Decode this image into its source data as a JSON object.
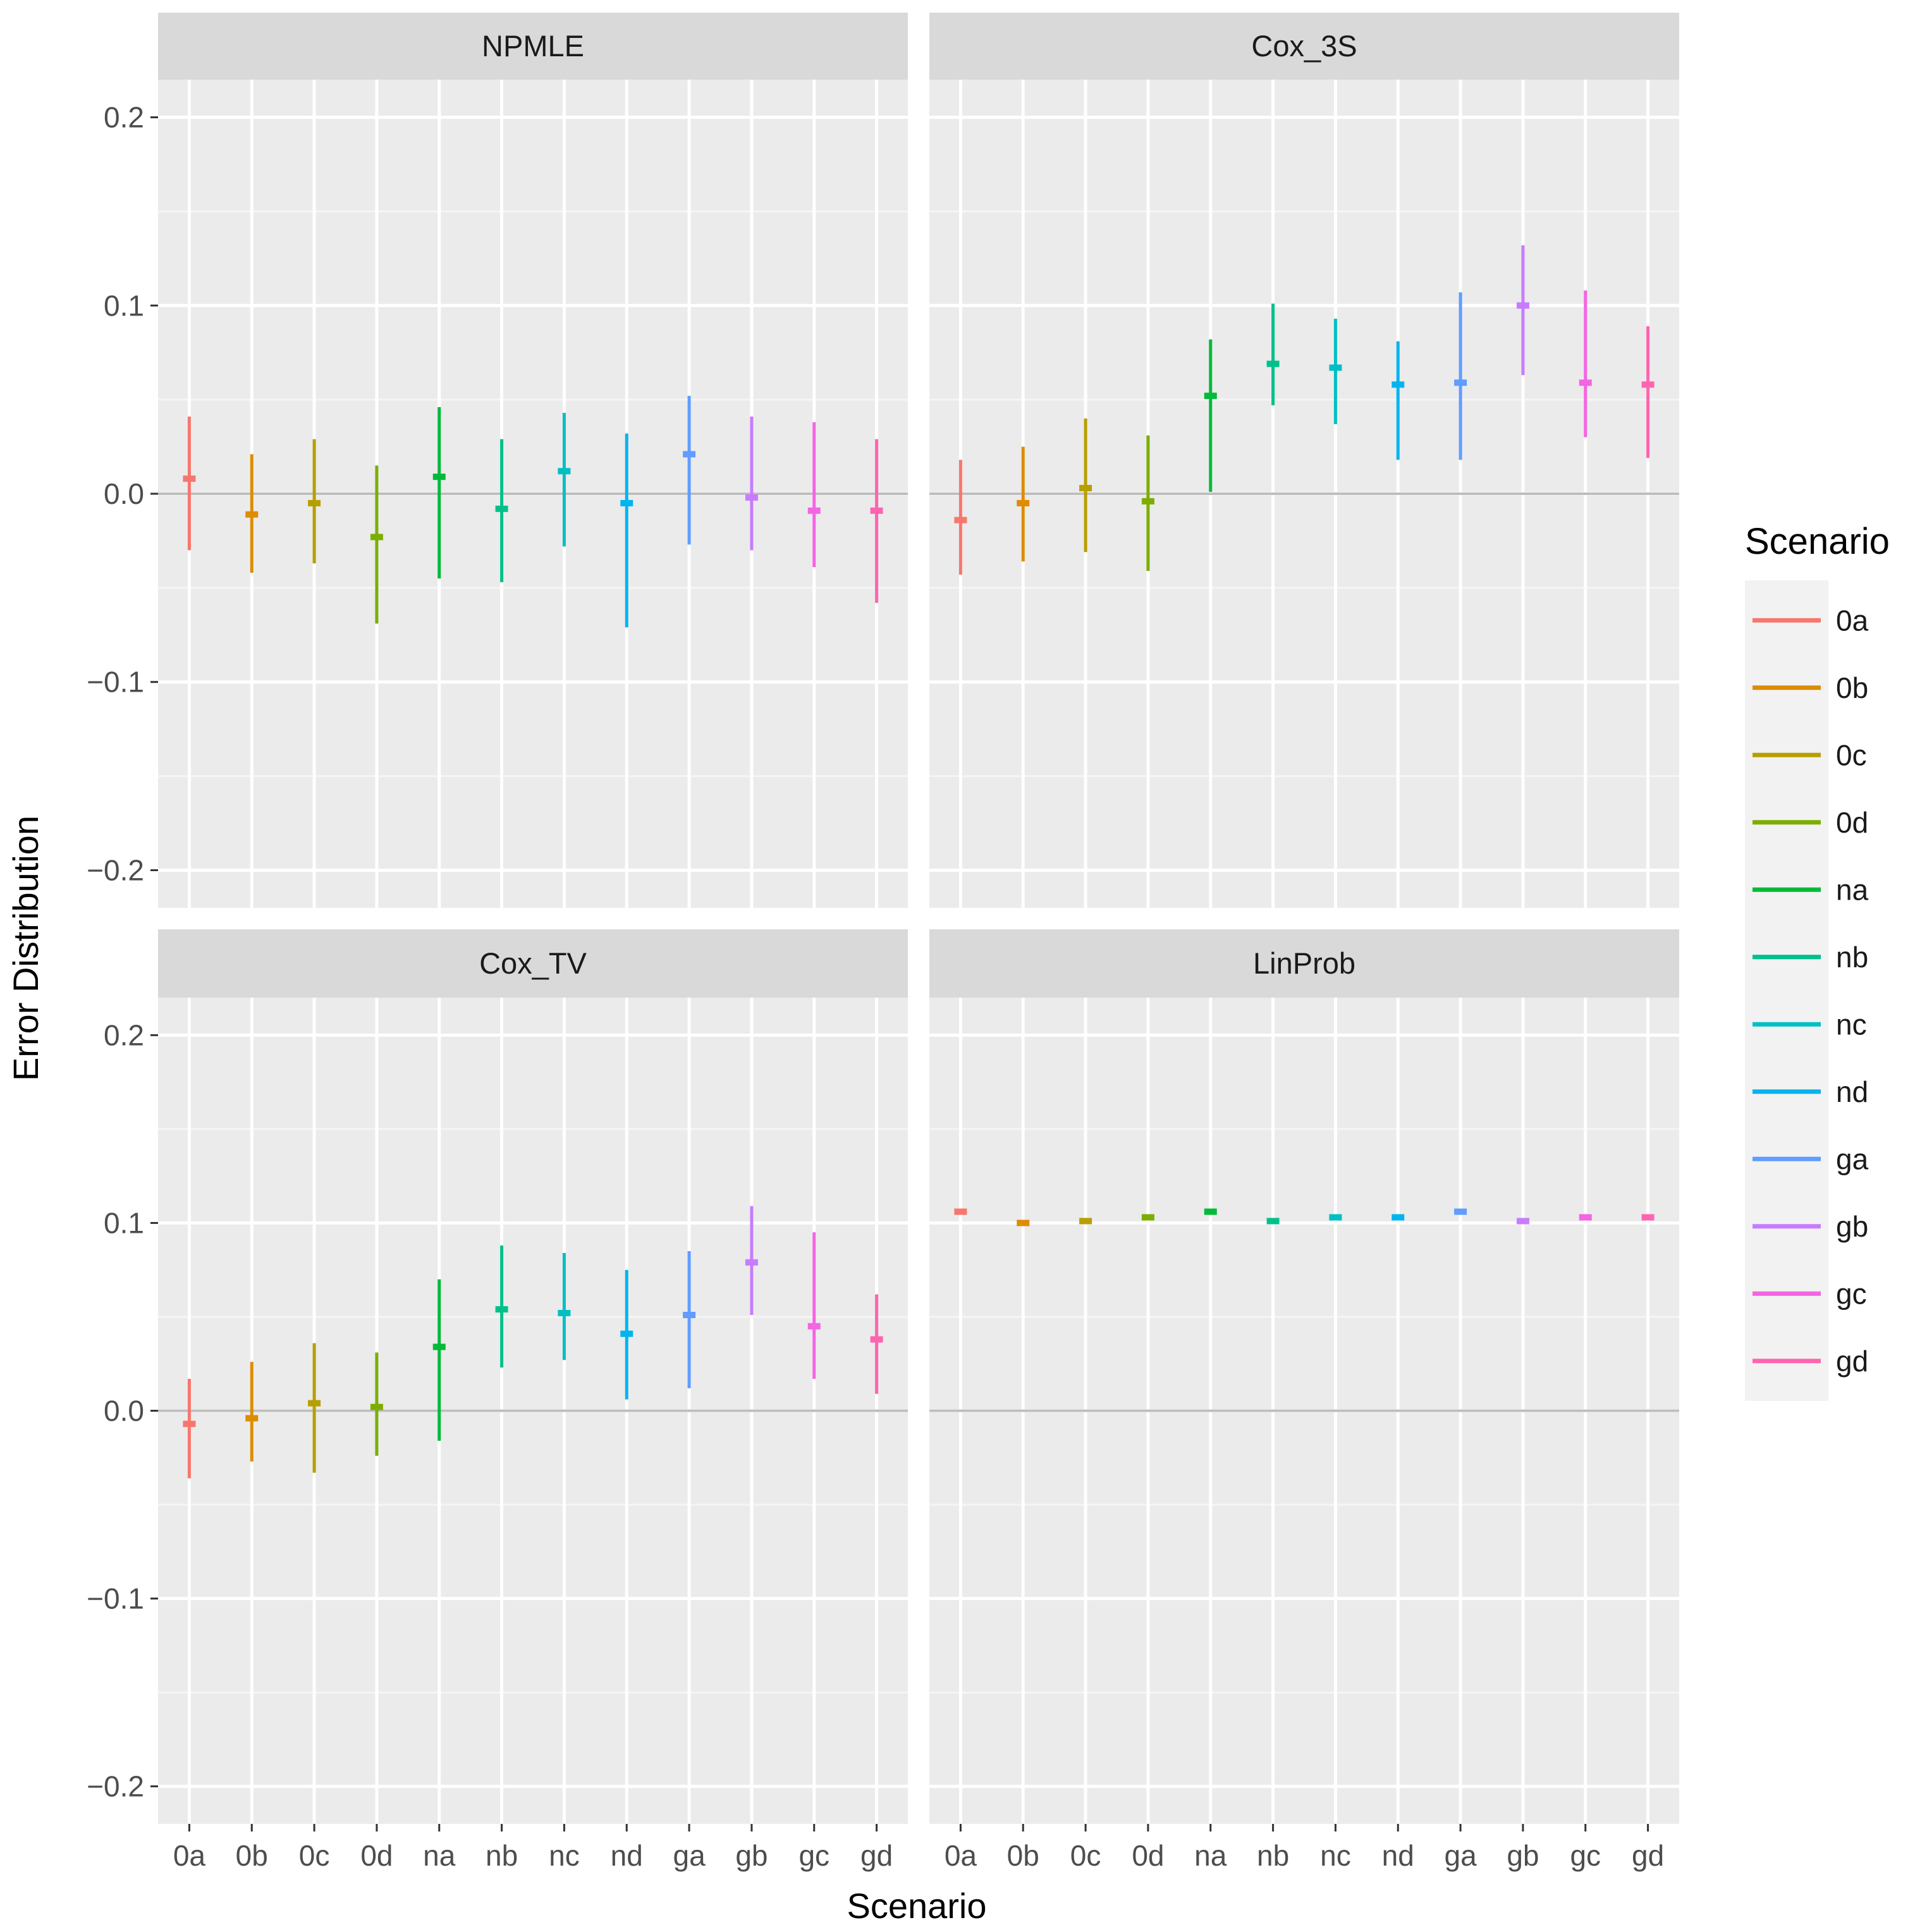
{
  "chart_data": {
    "type": "pointrange",
    "xlabel": "Scenario",
    "ylabel": "Error Distribution",
    "ylim": [
      -0.22,
      0.22
    ],
    "y_ticks": [
      -0.2,
      -0.1,
      0.0,
      0.1,
      0.2
    ],
    "y_tick_labels": [
      "−0.2",
      "−0.1",
      "0.0",
      "0.1",
      "0.2"
    ],
    "reference_line": 0.0,
    "categories": [
      "0a",
      "0b",
      "0c",
      "0d",
      "na",
      "nb",
      "nc",
      "nd",
      "ga",
      "gb",
      "gc",
      "gd"
    ],
    "colors": [
      "#F8766D",
      "#DE8C00",
      "#B79F00",
      "#7CAE00",
      "#00BA38",
      "#00C08B",
      "#00BFC4",
      "#00B4F0",
      "#619CFF",
      "#C77CFF",
      "#F564E3",
      "#FF64B0"
    ],
    "legend": {
      "title": "Scenario",
      "entries": [
        "0a",
        "0b",
        "0c",
        "0d",
        "na",
        "nb",
        "nc",
        "nd",
        "ga",
        "gb",
        "gc",
        "gd"
      ],
      "position": "right"
    },
    "panels": [
      {
        "name": "NPMLE",
        "mid": [
          0.008,
          -0.011,
          -0.005,
          -0.023,
          0.009,
          -0.008,
          0.012,
          -0.005,
          0.021,
          -0.002,
          -0.009,
          -0.009
        ],
        "low": [
          -0.03,
          -0.042,
          -0.037,
          -0.069,
          -0.045,
          -0.047,
          -0.028,
          -0.071,
          -0.027,
          -0.03,
          -0.039,
          -0.058
        ],
        "high": [
          0.041,
          0.021,
          0.029,
          0.015,
          0.046,
          0.029,
          0.043,
          0.032,
          0.052,
          0.041,
          0.038,
          0.029
        ]
      },
      {
        "name": "Cox_3S",
        "mid": [
          -0.014,
          -0.005,
          0.003,
          -0.004,
          0.052,
          0.069,
          0.067,
          0.058,
          0.059,
          0.1,
          0.059,
          0.058
        ],
        "low": [
          -0.043,
          -0.036,
          -0.031,
          -0.041,
          0.001,
          0.047,
          0.037,
          0.018,
          0.018,
          0.063,
          0.03,
          0.019
        ],
        "high": [
          0.018,
          0.025,
          0.04,
          0.031,
          0.082,
          0.101,
          0.093,
          0.081,
          0.107,
          0.132,
          0.108,
          0.089
        ]
      },
      {
        "name": "Cox_TV",
        "mid": [
          -0.007,
          -0.004,
          0.004,
          0.002,
          0.034,
          0.054,
          0.052,
          0.041,
          0.051,
          0.079,
          0.045,
          0.038
        ],
        "low": [
          -0.036,
          -0.027,
          -0.033,
          -0.024,
          -0.016,
          0.023,
          0.027,
          0.006,
          0.012,
          0.051,
          0.017,
          0.009
        ],
        "high": [
          0.017,
          0.026,
          0.036,
          0.031,
          0.07,
          0.088,
          0.084,
          0.075,
          0.085,
          0.109,
          0.095,
          0.062
        ]
      },
      {
        "name": "LinProb",
        "mid": [
          0.106,
          0.1,
          0.101,
          0.103,
          0.106,
          0.101,
          0.103,
          0.103,
          0.106,
          0.101,
          0.103,
          0.103
        ],
        "low": [
          0.105,
          0.099,
          0.1,
          0.102,
          0.105,
          0.1,
          0.102,
          0.102,
          0.105,
          0.1,
          0.102,
          0.102
        ],
        "high": [
          0.107,
          0.101,
          0.102,
          0.104,
          0.107,
          0.102,
          0.104,
          0.104,
          0.107,
          0.102,
          0.104,
          0.104
        ]
      }
    ]
  }
}
